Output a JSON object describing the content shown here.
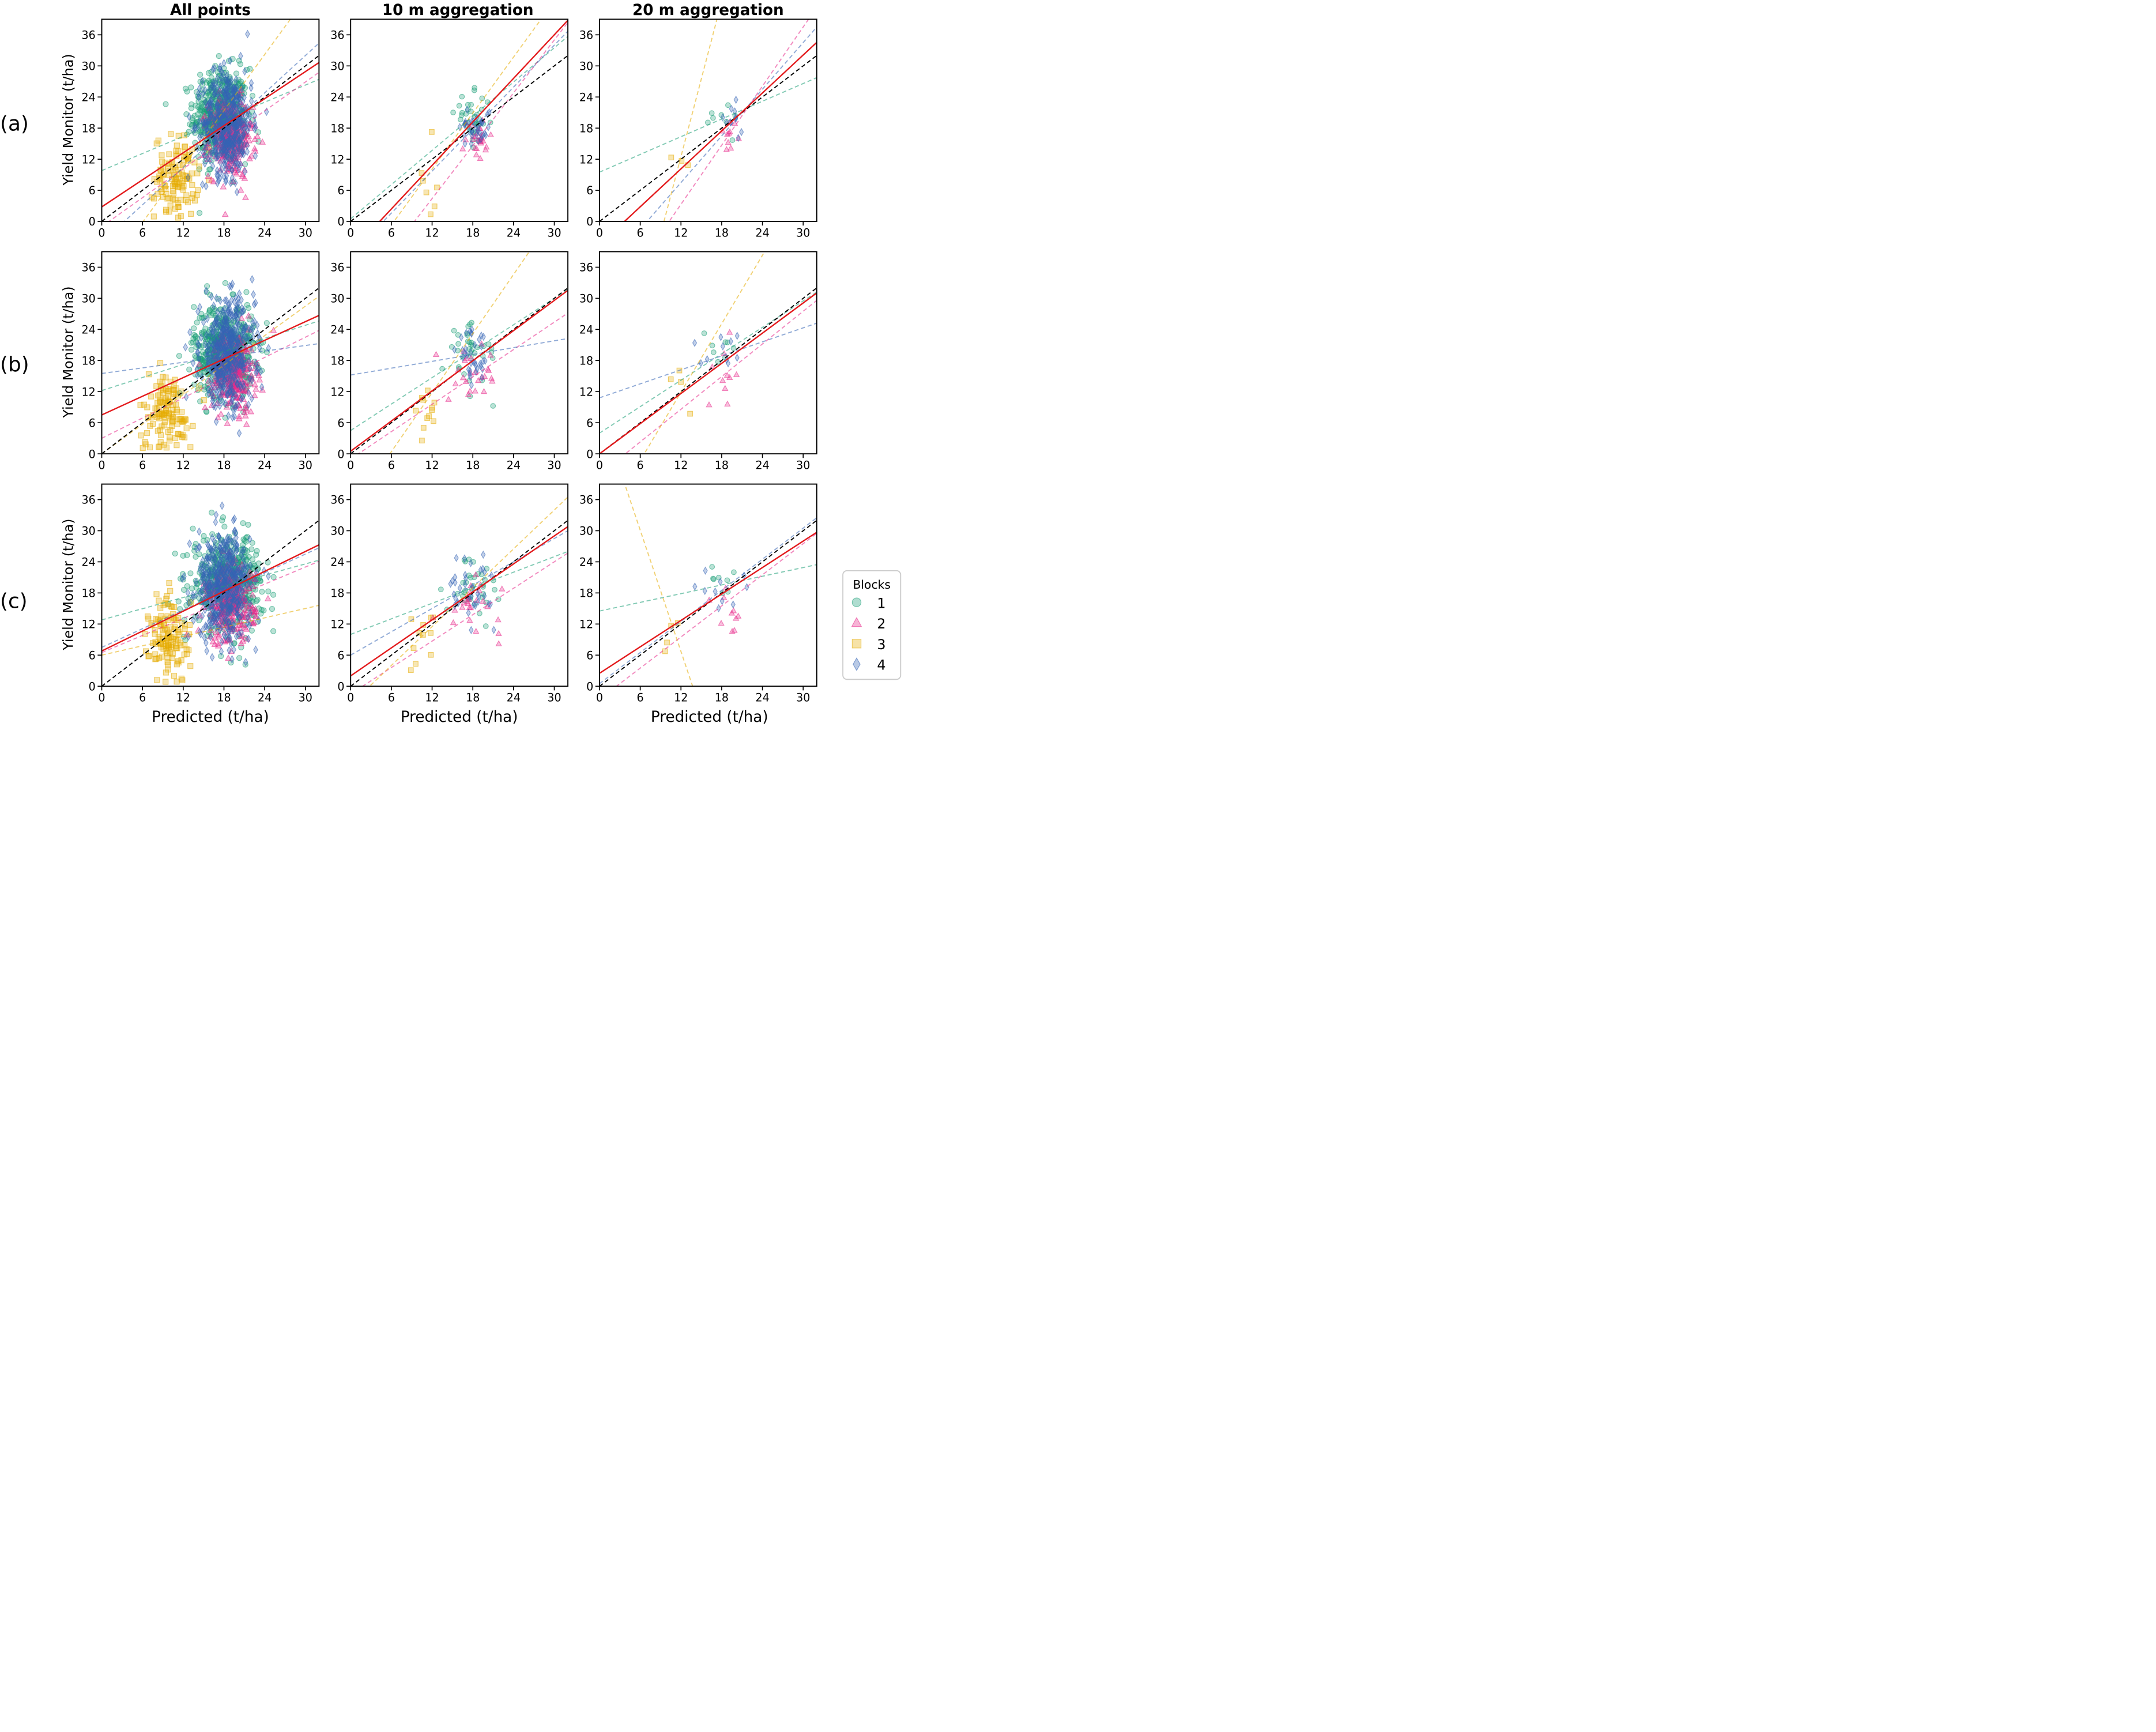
{
  "figure": {
    "column_titles": [
      "All points",
      "10 m aggregation",
      "20 m aggregation"
    ],
    "row_labels": [
      "(a)",
      "(b)",
      "(c)"
    ],
    "xlabel": "Predicted (t/ha)",
    "ylabel": "Yield Monitor (t/ha)",
    "legend": {
      "title": "Blocks",
      "entries": [
        {
          "label": "1",
          "marker": "circle",
          "color": "#1b9e77"
        },
        {
          "label": "2",
          "marker": "triangle",
          "color": "#e7298a"
        },
        {
          "label": "3",
          "marker": "square",
          "color": "#e6ab02"
        },
        {
          "label": "4",
          "marker": "diamond",
          "color": "#3465b5"
        }
      ]
    },
    "colors": {
      "overall_fit": "#e31a1c",
      "one_to_one": "#000000"
    }
  },
  "chart_data": [
    {
      "id": "a-all",
      "type": "scatter",
      "row": "(a)",
      "title": "All points",
      "xlim": [
        0,
        32
      ],
      "ylim": [
        0,
        39
      ],
      "xticks": [
        0,
        6,
        12,
        18,
        24,
        30
      ],
      "yticks": [
        0,
        6,
        12,
        18,
        24,
        30,
        36
      ],
      "points": {
        "1": {
          "n": 500,
          "xm": 17.5,
          "xs": 2.0,
          "ym": 20.5,
          "ys": 4.5
        },
        "2": {
          "n": 260,
          "xm": 19.0,
          "xs": 1.6,
          "ym": 16.0,
          "ys": 3.8
        },
        "3": {
          "n": 120,
          "xm": 11.0,
          "xs": 1.6,
          "ym": 8.5,
          "ys": 4.0
        },
        "4": {
          "n": 480,
          "xm": 18.5,
          "xs": 1.8,
          "ym": 19.0,
          "ys": 5.0
        }
      },
      "fits": {
        "overall": [
          0.87,
          2.8
        ],
        "1": [
          0.55,
          9.8
        ],
        "2": [
          0.93,
          -1.0
        ],
        "3": [
          1.8,
          -11.0
        ],
        "4": [
          1.2,
          -4.0
        ]
      }
    },
    {
      "id": "a-10m",
      "type": "scatter",
      "row": "(a)",
      "title": "10 m aggregation",
      "xlim": [
        0,
        32
      ],
      "ylim": [
        0,
        39
      ],
      "xticks": [
        0,
        6,
        12,
        18,
        24,
        30
      ],
      "yticks": [
        0,
        6,
        12,
        18,
        24,
        30,
        36
      ],
      "points": {
        "1": {
          "n": 35,
          "xm": 18.0,
          "xs": 1.3,
          "ym": 19.5,
          "ys": 2.5
        },
        "2": {
          "n": 25,
          "xm": 18.5,
          "xs": 1.2,
          "ym": 15.0,
          "ys": 2.5
        },
        "3": {
          "n": 10,
          "xm": 11.5,
          "xs": 0.8,
          "ym": 9.0,
          "ys": 5.0
        },
        "4": {
          "n": 35,
          "xm": 18.5,
          "xs": 1.2,
          "ym": 18.5,
          "ys": 2.0
        }
      },
      "fits": {
        "overall": [
          1.4,
          -6.0
        ],
        "1": [
          1.1,
          0.5
        ],
        "2": [
          1.7,
          -16.0
        ],
        "3": [
          1.8,
          -11.5
        ],
        "4": [
          1.35,
          -6.5
        ]
      }
    },
    {
      "id": "a-20m",
      "type": "scatter",
      "row": "(a)",
      "title": "20 m aggregation",
      "xlim": [
        0,
        32
      ],
      "ylim": [
        0,
        39
      ],
      "xticks": [
        0,
        6,
        12,
        18,
        24,
        30
      ],
      "yticks": [
        0,
        6,
        12,
        18,
        24,
        30,
        36
      ],
      "points": {
        "1": {
          "n": 8,
          "xm": 17.5,
          "xs": 1.0,
          "ym": 20.0,
          "ys": 1.5
        },
        "2": {
          "n": 10,
          "xm": 19.0,
          "xs": 1.2,
          "ym": 15.5,
          "ys": 2.5
        },
        "3": {
          "n": 3,
          "xm": 12.5,
          "xs": 0.8,
          "ym": 12.0,
          "ys": 3.5
        },
        "4": {
          "n": 10,
          "xm": 19.5,
          "xs": 1.0,
          "ym": 19.5,
          "ys": 1.5
        }
      },
      "fits": {
        "overall": [
          1.22,
          -4.5
        ],
        "1": [
          0.57,
          9.5
        ],
        "2": [
          1.9,
          -19.5
        ],
        "3": [
          5.0,
          -47.5
        ],
        "4": [
          1.5,
          -10.5
        ]
      }
    },
    {
      "id": "b-all",
      "type": "scatter",
      "row": "(b)",
      "title": "All points",
      "xlim": [
        0,
        32
      ],
      "ylim": [
        0,
        39
      ],
      "xticks": [
        0,
        6,
        12,
        18,
        24,
        30
      ],
      "yticks": [
        0,
        6,
        12,
        18,
        24,
        30,
        36
      ],
      "points": {
        "1": {
          "n": 500,
          "xm": 18.0,
          "xs": 2.2,
          "ym": 20.0,
          "ys": 4.5
        },
        "2": {
          "n": 260,
          "xm": 19.5,
          "xs": 1.6,
          "ym": 15.5,
          "ys": 3.8
        },
        "3": {
          "n": 130,
          "xm": 9.5,
          "xs": 2.0,
          "ym": 8.0,
          "ys": 4.0
        },
        "4": {
          "n": 480,
          "xm": 18.5,
          "xs": 2.0,
          "ym": 19.5,
          "ys": 5.0
        }
      },
      "fits": {
        "overall": [
          0.6,
          7.5
        ],
        "1": [
          0.42,
          12.2
        ],
        "2": [
          0.65,
          3.0
        ],
        "3": [
          0.95,
          0.0
        ],
        "4": [
          0.18,
          15.5
        ]
      }
    },
    {
      "id": "b-10m",
      "type": "scatter",
      "row": "(b)",
      "title": "10 m aggregation",
      "xlim": [
        0,
        32
      ],
      "ylim": [
        0,
        39
      ],
      "xticks": [
        0,
        6,
        12,
        18,
        24,
        30
      ],
      "yticks": [
        0,
        6,
        12,
        18,
        24,
        30,
        36
      ],
      "points": {
        "1": {
          "n": 35,
          "xm": 18.0,
          "xs": 1.8,
          "ym": 19.5,
          "ys": 3.0
        },
        "2": {
          "n": 25,
          "xm": 18.0,
          "xs": 1.8,
          "ym": 15.0,
          "ys": 2.5
        },
        "3": {
          "n": 12,
          "xm": 11.0,
          "xs": 1.0,
          "ym": 9.0,
          "ys": 3.5
        },
        "4": {
          "n": 35,
          "xm": 18.0,
          "xs": 1.2,
          "ym": 18.0,
          "ys": 2.8
        }
      },
      "fits": {
        "overall": [
          0.97,
          0.5
        ],
        "1": [
          0.85,
          4.5
        ],
        "2": [
          0.88,
          -1.0
        ],
        "3": [
          1.9,
          -11.0
        ],
        "4": [
          0.22,
          15.2
        ]
      }
    },
    {
      "id": "b-20m",
      "type": "scatter",
      "row": "(b)",
      "title": "20 m aggregation",
      "xlim": [
        0,
        32
      ],
      "ylim": [
        0,
        39
      ],
      "xticks": [
        0,
        6,
        12,
        18,
        24,
        30
      ],
      "yticks": [
        0,
        6,
        12,
        18,
        24,
        30,
        36
      ],
      "points": {
        "1": {
          "n": 8,
          "xm": 18.0,
          "xs": 1.5,
          "ym": 20.5,
          "ys": 1.5
        },
        "2": {
          "n": 10,
          "xm": 18.5,
          "xs": 1.8,
          "ym": 14.5,
          "ys": 3.0
        },
        "3": {
          "n": 4,
          "xm": 12.0,
          "xs": 1.5,
          "ym": 11.0,
          "ys": 4.0
        },
        "4": {
          "n": 10,
          "xm": 18.0,
          "xs": 1.5,
          "ym": 19.5,
          "ys": 2.0
        }
      },
      "fits": {
        "overall": [
          0.97,
          0.0
        ],
        "1": [
          0.85,
          4.0
        ],
        "2": [
          1.05,
          -4.0
        ],
        "3": [
          2.2,
          -14.5
        ],
        "4": [
          0.45,
          10.8
        ]
      }
    },
    {
      "id": "c-all",
      "type": "scatter",
      "row": "(c)",
      "title": "All points",
      "xlim": [
        0,
        32
      ],
      "ylim": [
        0,
        39
      ],
      "xticks": [
        0,
        6,
        12,
        18,
        24,
        30
      ],
      "yticks": [
        0,
        6,
        12,
        18,
        24,
        30,
        36
      ],
      "points": {
        "1": {
          "n": 500,
          "xm": 18.5,
          "xs": 2.6,
          "ym": 20.0,
          "ys": 4.5
        },
        "2": {
          "n": 260,
          "xm": 19.0,
          "xs": 1.8,
          "ym": 15.5,
          "ys": 3.8
        },
        "3": {
          "n": 130,
          "xm": 10.0,
          "xs": 1.5,
          "ym": 9.0,
          "ys": 4.5
        },
        "4": {
          "n": 480,
          "xm": 18.0,
          "xs": 2.0,
          "ym": 19.5,
          "ys": 5.0
        }
      },
      "fits": {
        "overall": [
          0.64,
          6.8
        ],
        "1": [
          0.36,
          12.8
        ],
        "2": [
          0.55,
          6.5
        ],
        "3": [
          0.3,
          6.0
        ],
        "4": [
          0.6,
          7.5
        ]
      }
    },
    {
      "id": "c-10m",
      "type": "scatter",
      "row": "(c)",
      "title": "10 m aggregation",
      "xlim": [
        0,
        32
      ],
      "ylim": [
        0,
        39
      ],
      "xticks": [
        0,
        6,
        12,
        18,
        24,
        30
      ],
      "yticks": [
        0,
        6,
        12,
        18,
        24,
        30,
        36
      ],
      "points": {
        "1": {
          "n": 35,
          "xm": 18.5,
          "xs": 2.2,
          "ym": 20.0,
          "ys": 3.0
        },
        "2": {
          "n": 25,
          "xm": 18.0,
          "xs": 2.0,
          "ym": 15.0,
          "ys": 2.5
        },
        "3": {
          "n": 12,
          "xm": 10.5,
          "xs": 1.2,
          "ym": 10.0,
          "ys": 4.0
        },
        "4": {
          "n": 35,
          "xm": 17.5,
          "xs": 1.8,
          "ym": 19.0,
          "ys": 3.0
        }
      },
      "fits": {
        "overall": [
          0.9,
          2.0
        ],
        "1": [
          0.5,
          10.0
        ],
        "2": [
          0.85,
          -1.5
        ],
        "3": [
          1.25,
          -3.5
        ],
        "4": [
          0.75,
          6.0
        ]
      }
    },
    {
      "id": "c-20m",
      "type": "scatter",
      "row": "(c)",
      "title": "20 m aggregation",
      "xlim": [
        0,
        32
      ],
      "ylim": [
        0,
        39
      ],
      "xticks": [
        0,
        6,
        12,
        18,
        24,
        30
      ],
      "yticks": [
        0,
        6,
        12,
        18,
        24,
        30,
        36
      ],
      "points": {
        "1": {
          "n": 8,
          "xm": 18.0,
          "xs": 1.5,
          "ym": 20.0,
          "ys": 1.8
        },
        "2": {
          "n": 10,
          "xm": 18.5,
          "xs": 1.8,
          "ym": 14.5,
          "ys": 3.0
        },
        "3": {
          "n": 4,
          "xm": 11.0,
          "xs": 1.2,
          "ym": 10.5,
          "ys": 4.0
        },
        "4": {
          "n": 10,
          "xm": 18.0,
          "xs": 1.5,
          "ym": 18.5,
          "ys": 2.5
        }
      },
      "fits": {
        "overall": [
          0.85,
          2.5
        ],
        "1": [
          0.28,
          14.5
        ],
        "2": [
          1.0,
          -2.5
        ],
        "3": [
          -3.9,
          53.5
        ],
        "4": [
          1.0,
          0.5
        ]
      }
    }
  ]
}
